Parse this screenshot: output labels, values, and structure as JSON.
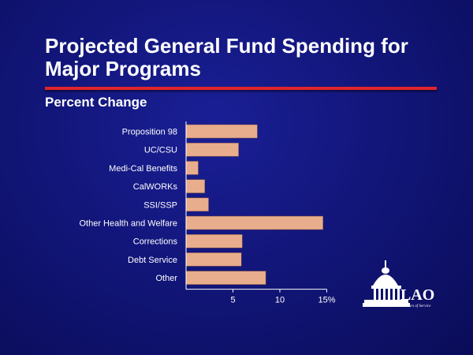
{
  "title": "Projected General Fund Spending for Major Programs",
  "subtitle": "Percent Change",
  "logo_text": "LAO",
  "logo_tagline": "60 Years of Service",
  "colors": {
    "background": "#12167a",
    "accent_rule": "#e0242c",
    "bar_fill": "#e8ad8c",
    "text": "#ffffff"
  },
  "chart_data": {
    "type": "bar",
    "orientation": "horizontal",
    "title": "Percent Change",
    "categories": [
      "Proposition 98",
      "UC/CSU",
      "Medi-Cal Benefits",
      "CalWORKs",
      "SSI/SSP",
      "Other Health and Welfare",
      "Corrections",
      "Debt Service",
      "Other"
    ],
    "values": [
      7.6,
      5.6,
      1.3,
      2.0,
      2.4,
      14.6,
      6.0,
      5.9,
      8.5
    ],
    "xlim": [
      0,
      15
    ],
    "x_ticks": [
      5,
      10,
      15
    ],
    "x_tick_labels": [
      "5",
      "10",
      "15%"
    ],
    "xlabel": "",
    "ylabel": "",
    "grid": false,
    "legend": "none"
  }
}
